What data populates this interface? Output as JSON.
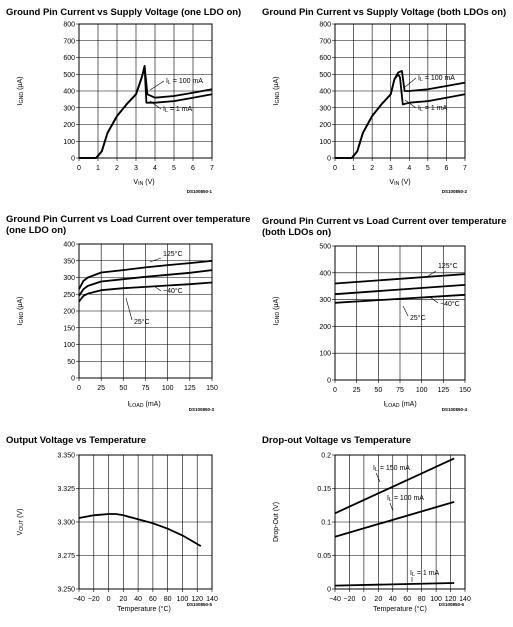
{
  "colors": {
    "line": "#000000",
    "grid": "#000000",
    "background": "#ffffff"
  },
  "chart_data": [
    {
      "type": "line",
      "title": "Ground Pin Current vs Supply Voltage (one LDO on)",
      "xlabel": "V_IN (V)",
      "ylabel": "I_GND (µA)",
      "xlim": [
        0,
        7
      ],
      "ylim": [
        0,
        800
      ],
      "xticks": [
        "0",
        "1",
        "2",
        "3",
        "4",
        "5",
        "6",
        "7"
      ],
      "yticks": [
        "0",
        "100",
        "200",
        "300",
        "400",
        "500",
        "600",
        "700",
        "800"
      ],
      "code": "DS100850-1",
      "annotations": [
        "I_L = 100 mA",
        "I_L = 1 mA"
      ],
      "series": [
        {
          "x": [
            0,
            0.9,
            1.2,
            1.5,
            2.0,
            2.5,
            3.0,
            3.3,
            3.45,
            3.6,
            4.0,
            5.0,
            6.0,
            7.0
          ],
          "y": [
            0,
            0,
            40,
            150,
            250,
            320,
            380,
            480,
            550,
            380,
            360,
            370,
            390,
            410
          ]
        },
        {
          "x": [
            0,
            0.9,
            1.2,
            1.5,
            2.0,
            2.5,
            3.0,
            3.3,
            3.45,
            3.55,
            4.0,
            5.0,
            6.0,
            7.0
          ],
          "y": [
            0,
            0,
            40,
            150,
            250,
            320,
            380,
            480,
            540,
            330,
            330,
            340,
            360,
            380
          ]
        }
      ]
    },
    {
      "type": "line",
      "title": "Ground Pin Current vs Supply Voltage (both LDOs on)",
      "xlabel": "V_IN (V)",
      "ylabel": "I_GND (µA)",
      "xlim": [
        0,
        7
      ],
      "ylim": [
        0,
        800
      ],
      "xticks": [
        "0",
        "1",
        "2",
        "3",
        "4",
        "5",
        "6",
        "7"
      ],
      "yticks": [
        "0",
        "100",
        "200",
        "300",
        "400",
        "500",
        "600",
        "700",
        "800"
      ],
      "code": "DS100850-2",
      "annotations": [
        "I_L = 100 mA",
        "I_L = 1 mA"
      ],
      "series": [
        {
          "x": [
            0,
            0.9,
            1.2,
            1.5,
            2.0,
            2.5,
            3.0,
            3.2,
            3.4,
            3.6,
            3.75,
            4.0,
            5.0,
            6.0,
            7.0
          ],
          "y": [
            0,
            0,
            40,
            150,
            250,
            320,
            380,
            470,
            510,
            520,
            400,
            400,
            410,
            430,
            450
          ]
        },
        {
          "x": [
            0,
            0.9,
            1.2,
            1.5,
            2.0,
            2.5,
            3.0,
            3.2,
            3.4,
            3.5,
            3.65,
            4.0,
            5.0,
            6.0,
            7.0
          ],
          "y": [
            0,
            0,
            40,
            150,
            250,
            320,
            380,
            470,
            500,
            480,
            320,
            330,
            340,
            360,
            380
          ]
        }
      ]
    },
    {
      "type": "line",
      "title": "Ground Pin Current vs Load Current over temperature",
      "subtitle": "(one LDO on)",
      "xlabel": "I_LOAD (mA)",
      "ylabel": "I_GND (µA)",
      "xlim": [
        0,
        150
      ],
      "ylim": [
        0,
        400
      ],
      "xticks": [
        "0",
        "25",
        "50",
        "75",
        "100",
        "125",
        "150"
      ],
      "yticks": [
        "0",
        "50",
        "100",
        "150",
        "200",
        "250",
        "300",
        "350",
        "400"
      ],
      "code": "DS100850-3",
      "annotations": [
        "125°C",
        "−40°C",
        "25°C"
      ],
      "series": [
        {
          "x": [
            0,
            5,
            10,
            25,
            50,
            75,
            100,
            125,
            150
          ],
          "y": [
            265,
            290,
            300,
            315,
            322,
            330,
            337,
            343,
            350
          ]
        },
        {
          "x": [
            0,
            5,
            10,
            25,
            50,
            75,
            100,
            125,
            150
          ],
          "y": [
            245,
            265,
            275,
            288,
            295,
            302,
            308,
            314,
            322
          ]
        },
        {
          "x": [
            0,
            5,
            10,
            25,
            50,
            75,
            100,
            125,
            150
          ],
          "y": [
            228,
            245,
            252,
            262,
            268,
            272,
            276,
            280,
            285
          ]
        }
      ]
    },
    {
      "type": "line",
      "title": "Ground Pin Current vs Load Current over temperature",
      "subtitle": "(both LDOs on)",
      "xlabel": "I_LOAD (mA)",
      "ylabel": "I_GND (µA)",
      "xlim": [
        0,
        150
      ],
      "ylim": [
        0,
        500
      ],
      "xticks": [
        "0",
        "25",
        "50",
        "75",
        "100",
        "125",
        "150"
      ],
      "yticks": [
        "0",
        "100",
        "200",
        "300",
        "400",
        "500"
      ],
      "code": "DS100850-4",
      "annotations": [
        "125°C",
        "−40°C",
        "25°C"
      ],
      "series": [
        {
          "x": [
            0,
            150
          ],
          "y": [
            360,
            395
          ]
        },
        {
          "x": [
            0,
            150
          ],
          "y": [
            320,
            355
          ]
        },
        {
          "x": [
            0,
            150
          ],
          "y": [
            288,
            318
          ]
        }
      ]
    },
    {
      "type": "line",
      "title": "Output Voltage vs Temperature",
      "xlabel": "Temperature (°C)",
      "ylabel": "V_OUT (V)",
      "xlim": [
        -40,
        140
      ],
      "ylim": [
        3.25,
        3.35
      ],
      "xticks": [
        "−40",
        "−20",
        "0",
        "20",
        "40",
        "60",
        "80",
        "100",
        "120",
        "140"
      ],
      "yticks": [
        "3.250",
        "3.275",
        "3.300",
        "3.325",
        "3.350"
      ],
      "code": "DS100850-5",
      "annotations": [],
      "series": [
        {
          "x": [
            -40,
            -20,
            0,
            10,
            20,
            40,
            60,
            80,
            100,
            125
          ],
          "y": [
            3.303,
            3.305,
            3.306,
            3.306,
            3.305,
            3.302,
            3.299,
            3.295,
            3.29,
            3.282
          ]
        }
      ]
    },
    {
      "type": "line",
      "title": "Drop-out Voltage vs Temperature",
      "xlabel": "Temperature (°C)",
      "ylabel": "Drop-Out (V)",
      "xlim": [
        -40,
        140
      ],
      "ylim": [
        0,
        0.2
      ],
      "xticks": [
        "−40",
        "−20",
        "0",
        "20",
        "40",
        "60",
        "80",
        "100",
        "120",
        "140"
      ],
      "yticks": [
        "0",
        "0.05",
        "0.1",
        "0.15",
        "0.2"
      ],
      "code": "DS100850-6",
      "annotations": [
        "I_L = 150 mA",
        "I_L = 100 mA",
        "I_L = 1 mA"
      ],
      "series": [
        {
          "x": [
            -40,
            125
          ],
          "y": [
            0.113,
            0.195
          ]
        },
        {
          "x": [
            -40,
            125
          ],
          "y": [
            0.078,
            0.13
          ]
        },
        {
          "x": [
            -40,
            125
          ],
          "y": [
            0.005,
            0.009
          ]
        }
      ]
    }
  ]
}
